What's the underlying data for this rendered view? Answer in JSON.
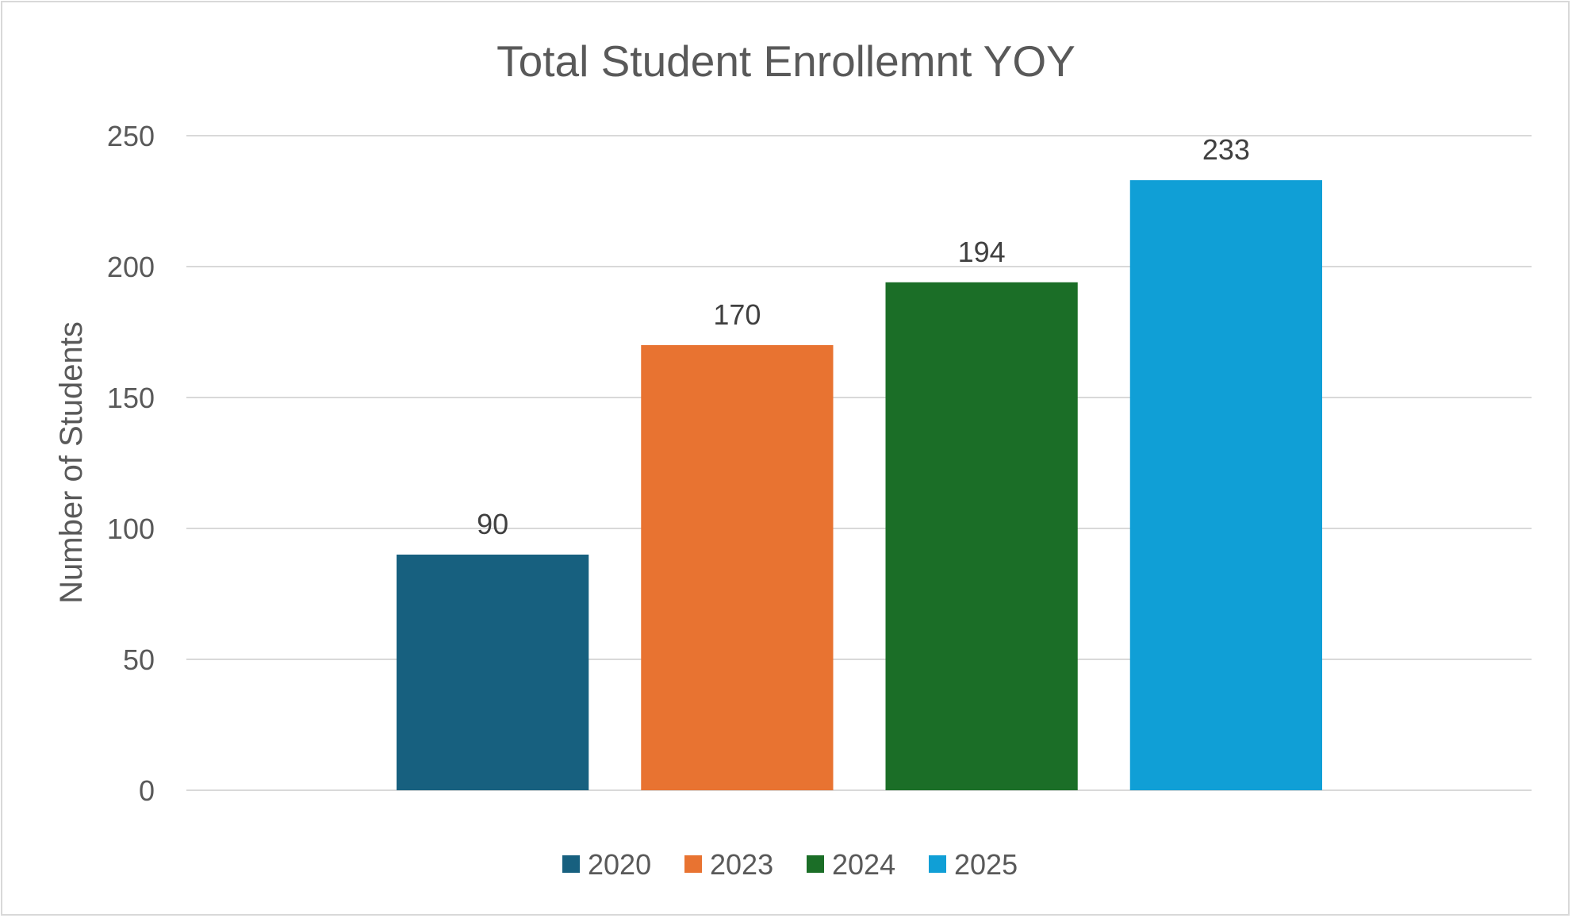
{
  "chart_data": {
    "type": "bar",
    "title": "Total Student Enrollemnt YOY",
    "xlabel": "",
    "ylabel": "Number of Students",
    "ylim": [
      0,
      250
    ],
    "yticks": [
      "0",
      "50",
      "100",
      "150",
      "200",
      "250"
    ],
    "grid": true,
    "legend_position": "bottom",
    "data_labels": true,
    "series": [
      {
        "name": "2020",
        "values": [
          90
        ],
        "color": "#17607f"
      },
      {
        "name": "2023",
        "values": [
          170
        ],
        "color": "#e87331"
      },
      {
        "name": "2024",
        "values": [
          194
        ],
        "color": "#1b6e27"
      },
      {
        "name": "2025",
        "values": [
          233
        ],
        "color": "#109fd6"
      }
    ]
  }
}
